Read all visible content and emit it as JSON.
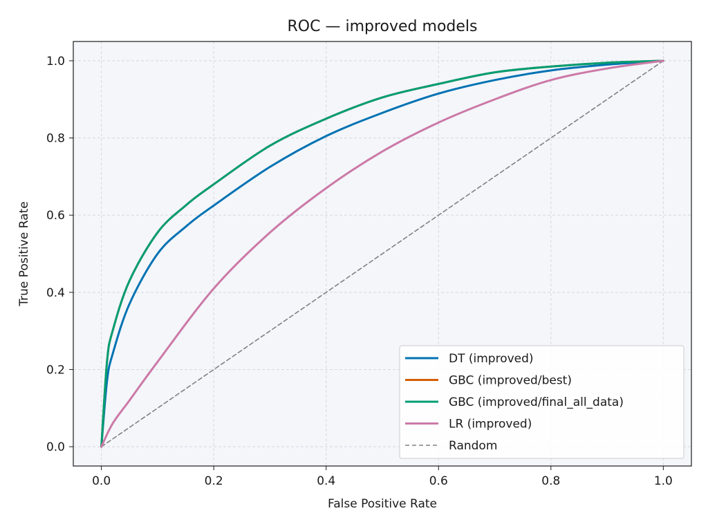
{
  "chart_data": {
    "type": "line",
    "title": "ROC — improved models",
    "xlabel": "False Positive Rate",
    "ylabel": "True Positive Rate",
    "xlim": [
      -0.05,
      1.05
    ],
    "ylim": [
      -0.05,
      1.05
    ],
    "xticks": [
      "0.0",
      "0.2",
      "0.4",
      "0.6",
      "0.8",
      "1.0"
    ],
    "yticks": [
      "0.0",
      "0.2",
      "0.4",
      "0.6",
      "0.8",
      "1.0"
    ],
    "grid": true,
    "legend_position": "lower-right",
    "background_color": "#f4f6fa",
    "series": [
      {
        "name": "DT (improved)",
        "color": "#0072b2",
        "dashed": false,
        "x": [
          0,
          0.01,
          0.02,
          0.05,
          0.1,
          0.15,
          0.2,
          0.3,
          0.4,
          0.5,
          0.6,
          0.7,
          0.8,
          0.9,
          1.0
        ],
        "y": [
          0,
          0.17,
          0.24,
          0.37,
          0.5,
          0.57,
          0.625,
          0.725,
          0.805,
          0.865,
          0.915,
          0.95,
          0.975,
          0.99,
          1.0
        ]
      },
      {
        "name": "GBC (improved/best)",
        "color": "#d55e00",
        "dashed": false,
        "x": [
          0,
          0.01,
          0.02,
          0.05,
          0.1,
          0.15,
          0.2,
          0.3,
          0.4,
          0.5,
          0.6,
          0.7,
          0.8,
          0.9,
          1.0
        ],
        "y": [
          0,
          0.22,
          0.3,
          0.43,
          0.555,
          0.625,
          0.68,
          0.78,
          0.85,
          0.905,
          0.94,
          0.97,
          0.985,
          0.995,
          1.0
        ]
      },
      {
        "name": "GBC (improved/final_all_data)",
        "color": "#009e73",
        "dashed": false,
        "x": [
          0,
          0.01,
          0.02,
          0.05,
          0.1,
          0.15,
          0.2,
          0.3,
          0.4,
          0.5,
          0.6,
          0.7,
          0.8,
          0.9,
          1.0
        ],
        "y": [
          0,
          0.22,
          0.3,
          0.43,
          0.555,
          0.625,
          0.68,
          0.78,
          0.85,
          0.905,
          0.94,
          0.97,
          0.985,
          0.995,
          1.0
        ]
      },
      {
        "name": "LR (improved)",
        "color": "#cc79a7",
        "dashed": false,
        "x": [
          0,
          0.02,
          0.05,
          0.1,
          0.2,
          0.3,
          0.4,
          0.5,
          0.6,
          0.7,
          0.8,
          0.9,
          1.0
        ],
        "y": [
          0,
          0.06,
          0.12,
          0.22,
          0.41,
          0.555,
          0.67,
          0.765,
          0.84,
          0.9,
          0.95,
          0.98,
          1.0
        ]
      },
      {
        "name": "Random",
        "color": "#808080",
        "dashed": true,
        "x": [
          0,
          1
        ],
        "y": [
          0,
          1
        ]
      }
    ]
  }
}
